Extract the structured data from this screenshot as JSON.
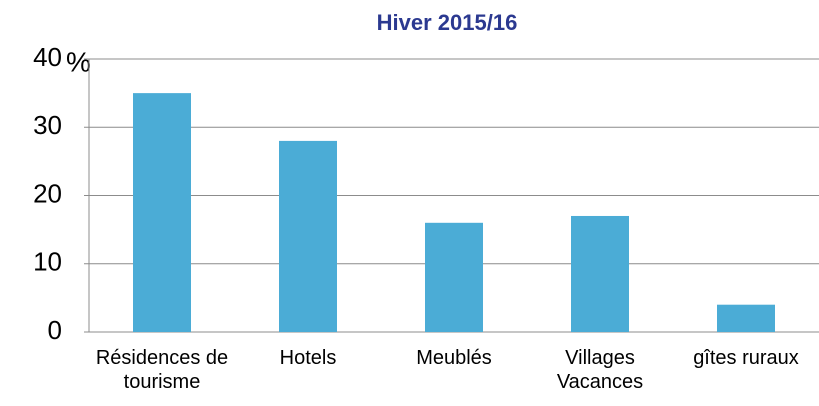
{
  "chart_data": {
    "type": "bar",
    "title": "Hiver 2015/16",
    "y_label": "%",
    "categories": [
      "Résidences de tourisme",
      "Hotels",
      "Meublés",
      "Villages Vacances",
      "gîtes ruraux"
    ],
    "values": [
      35,
      28,
      16,
      17,
      4
    ],
    "color": "#4bacd6",
    "ylim": [
      0,
      40
    ],
    "yticks": [
      0,
      10,
      20,
      30,
      40
    ],
    "grid": true
  }
}
